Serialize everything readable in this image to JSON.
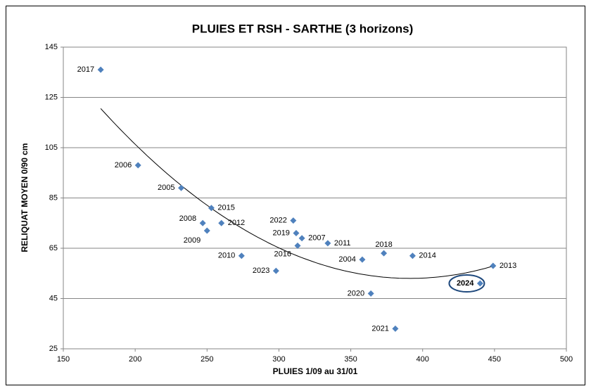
{
  "chart_data": {
    "type": "scatter",
    "title": "PLUIES ET RSH - SARTHE (3 horizons)",
    "x_label": "PLUIES 1/09 au 31/01",
    "y_label": "RELIQUAT MOYEN 0/90 cm",
    "labels": [
      "2017",
      "2006",
      "2005",
      "2015",
      "2008",
      "2012",
      "2009",
      "2010",
      "2022",
      "2019",
      "2007",
      "2016",
      "2011",
      "2023",
      "2004",
      "2018",
      "2014",
      "2020",
      "2021",
      "2024",
      "2013"
    ],
    "x": [
      176,
      202,
      232,
      253,
      247,
      260,
      250,
      274,
      310,
      312,
      316,
      313,
      334,
      298,
      358,
      373,
      393,
      364,
      381,
      440,
      449
    ],
    "y": [
      136,
      98,
      89,
      81,
      75,
      75,
      72,
      62,
      76,
      71,
      69,
      66,
      67,
      56,
      60.5,
      63,
      62,
      47,
      33,
      51,
      58
    ],
    "color": "#4f81bd",
    "highlight": 19,
    "trendline": "polynomial",
    "xlim": [
      150,
      500
    ],
    "xticks": [
      150,
      200,
      250,
      300,
      350,
      400,
      450,
      500
    ],
    "ylim": [
      25,
      145
    ],
    "yticks": [
      25,
      45,
      65,
      85,
      105,
      125,
      145
    ],
    "grid": true
  }
}
